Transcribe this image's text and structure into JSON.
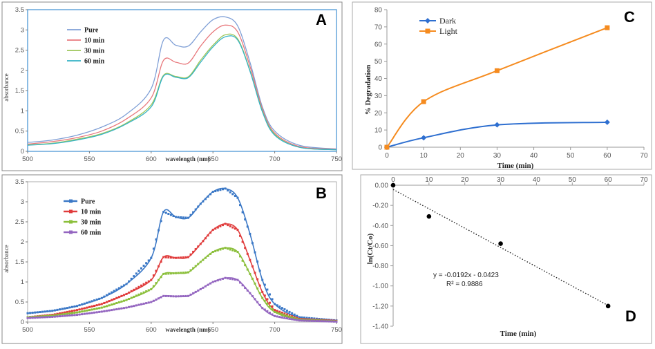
{
  "chart_data": [
    {
      "panel": "A",
      "type": "line",
      "xlabel": "wavelength (nm)",
      "ylabel": "absorbance",
      "xlim": [
        500,
        750
      ],
      "ylim": [
        0,
        3.5
      ],
      "xticks": [
        500,
        550,
        600,
        650,
        700,
        750
      ],
      "yticks": [
        "0",
        "0.5",
        "1",
        "1.5",
        "2",
        "2.5",
        "3",
        "3.5"
      ],
      "legend": [
        "Pure",
        "10 min",
        "30 min",
        "60 min"
      ],
      "colors": [
        "#7f9fd6",
        "#e8777b",
        "#9dc65a",
        "#35b3c6"
      ],
      "series": [
        {
          "name": "Pure",
          "x": [
            500,
            520,
            540,
            560,
            580,
            600,
            610,
            620,
            630,
            640,
            650,
            660,
            670,
            680,
            690,
            700,
            720,
            750
          ],
          "y": [
            0.22,
            0.28,
            0.4,
            0.6,
            0.92,
            1.55,
            2.75,
            2.62,
            2.6,
            2.95,
            3.25,
            3.32,
            3.1,
            2.2,
            1.1,
            0.5,
            0.15,
            0.06
          ]
        },
        {
          "name": "10 min",
          "x": [
            500,
            520,
            540,
            560,
            580,
            600,
            610,
            620,
            630,
            640,
            650,
            660,
            670,
            680,
            690,
            700,
            720,
            750
          ],
          "y": [
            0.18,
            0.24,
            0.34,
            0.5,
            0.8,
            1.32,
            2.25,
            2.2,
            2.18,
            2.6,
            2.95,
            3.12,
            2.95,
            2.1,
            1.05,
            0.45,
            0.12,
            0.05
          ]
        },
        {
          "name": "30 min",
          "x": [
            500,
            520,
            540,
            560,
            580,
            600,
            610,
            620,
            630,
            640,
            650,
            660,
            670,
            680,
            690,
            700,
            720,
            750
          ],
          "y": [
            0.16,
            0.2,
            0.3,
            0.44,
            0.7,
            1.15,
            1.88,
            1.85,
            1.84,
            2.25,
            2.62,
            2.88,
            2.78,
            2.0,
            1.0,
            0.42,
            0.1,
            0.04
          ]
        },
        {
          "name": "60 min",
          "x": [
            500,
            520,
            540,
            560,
            580,
            600,
            610,
            620,
            630,
            640,
            650,
            660,
            670,
            680,
            690,
            700,
            720,
            750
          ],
          "y": [
            0.15,
            0.19,
            0.28,
            0.42,
            0.68,
            1.1,
            1.86,
            1.83,
            1.82,
            2.2,
            2.58,
            2.83,
            2.75,
            1.98,
            0.98,
            0.4,
            0.1,
            0.04
          ]
        }
      ]
    },
    {
      "panel": "B",
      "type": "line",
      "xlabel": "wavelength (nm)",
      "ylabel": "absorbance",
      "xlim": [
        500,
        750
      ],
      "ylim": [
        0,
        3.5
      ],
      "xticks": [
        500,
        550,
        600,
        650,
        700,
        750
      ],
      "yticks": [
        "0",
        "0.5",
        "1",
        "1.5",
        "2",
        "2.5",
        "3",
        "3.5"
      ],
      "legend": [
        "Pure",
        "10 min",
        "30 min",
        "60 min"
      ],
      "colors": [
        "#3b78c6",
        "#e03c3c",
        "#8bbf3b",
        "#9466c0"
      ],
      "series": [
        {
          "name": "Pure",
          "x": [
            500,
            520,
            540,
            560,
            580,
            600,
            610,
            620,
            630,
            640,
            650,
            660,
            670,
            680,
            690,
            700,
            720,
            750
          ],
          "y": [
            0.22,
            0.28,
            0.4,
            0.6,
            0.95,
            1.6,
            2.75,
            2.62,
            2.6,
            2.95,
            3.25,
            3.33,
            3.1,
            2.2,
            1.05,
            0.45,
            0.12,
            0.04
          ]
        },
        {
          "name": "10 min",
          "x": [
            500,
            520,
            540,
            560,
            580,
            600,
            610,
            620,
            630,
            640,
            650,
            660,
            670,
            680,
            690,
            700,
            720,
            750
          ],
          "y": [
            0.12,
            0.18,
            0.3,
            0.45,
            0.7,
            1.05,
            1.62,
            1.6,
            1.62,
            1.95,
            2.3,
            2.45,
            2.3,
            1.55,
            0.75,
            0.3,
            0.08,
            0.03
          ]
        },
        {
          "name": "30 min",
          "x": [
            500,
            520,
            540,
            560,
            580,
            600,
            610,
            620,
            630,
            640,
            650,
            660,
            670,
            680,
            690,
            700,
            720,
            750
          ],
          "y": [
            0.12,
            0.16,
            0.24,
            0.36,
            0.55,
            0.82,
            1.2,
            1.22,
            1.24,
            1.5,
            1.75,
            1.85,
            1.75,
            1.2,
            0.6,
            0.25,
            0.06,
            0.02
          ]
        },
        {
          "name": "60 min",
          "x": [
            500,
            520,
            540,
            560,
            580,
            600,
            610,
            620,
            630,
            640,
            650,
            660,
            670,
            680,
            690,
            700,
            720,
            750
          ],
          "y": [
            0.1,
            0.13,
            0.18,
            0.26,
            0.36,
            0.5,
            0.65,
            0.64,
            0.65,
            0.82,
            1.0,
            1.1,
            1.05,
            0.72,
            0.35,
            0.15,
            0.04,
            0.01
          ]
        }
      ]
    },
    {
      "panel": "C",
      "type": "line",
      "xlabel": "Time (min)",
      "ylabel": "% Degradation",
      "xlim": [
        0,
        70
      ],
      "ylim": [
        0,
        80
      ],
      "xticks": [
        0,
        10,
        20,
        30,
        40,
        50,
        60,
        70
      ],
      "yticks": [
        0,
        10,
        20,
        30,
        40,
        50,
        60,
        70,
        80
      ],
      "legend": [
        "Dark",
        "Light"
      ],
      "colors": [
        "#2e6fd0",
        "#f58b1f"
      ],
      "series": [
        {
          "name": "Dark",
          "x": [
            0,
            10,
            30,
            60
          ],
          "y": [
            0,
            5.5,
            13,
            14.5
          ]
        },
        {
          "name": "Light",
          "x": [
            0,
            10,
            30,
            60
          ],
          "y": [
            0,
            26.5,
            44.5,
            69.5
          ]
        }
      ]
    },
    {
      "panel": "D",
      "type": "scatter",
      "xlabel": "Time (min)",
      "ylabel": "ln(Ct/Co)",
      "xlim": [
        0,
        70
      ],
      "ylim": [
        -1.4,
        0
      ],
      "xticks": [
        0,
        10,
        20,
        30,
        40,
        50,
        60,
        70
      ],
      "yticks": [
        "0.00",
        "-0.20",
        "-0.40",
        "-0.60",
        "-0.80",
        "-1.00",
        "-1.20",
        "-1.40"
      ],
      "points": {
        "x": [
          0,
          10,
          30,
          60
        ],
        "y": [
          0.0,
          -0.31,
          -0.58,
          -1.2
        ]
      },
      "trendline": {
        "slope": -0.0192,
        "intercept": -0.0423,
        "x_range": [
          0,
          60
        ]
      },
      "equation": "y = -0.0192x - 0.0423",
      "r_squared": "R² = 0.9886"
    }
  ],
  "panel_letters": [
    "A",
    "B",
    "C",
    "D"
  ]
}
